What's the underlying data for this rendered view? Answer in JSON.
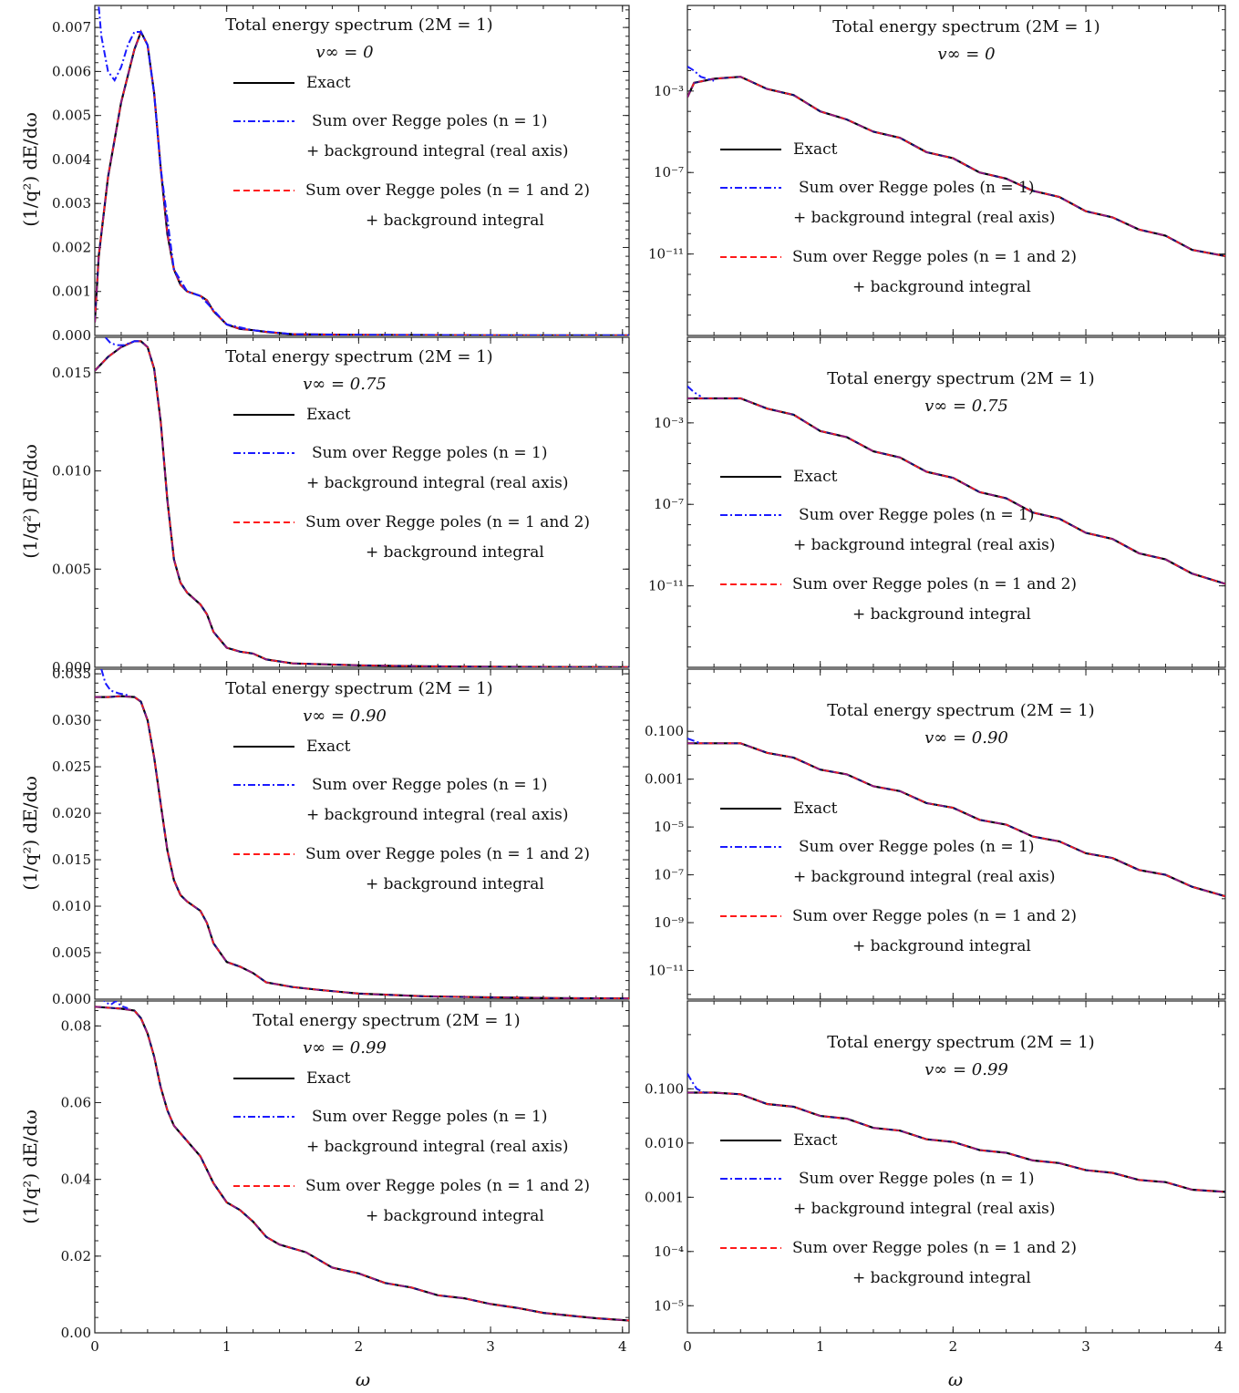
{
  "figure": {
    "x_axis_label": "ω",
    "y_axis_label": "(1/q²) dE/dω"
  },
  "legend": {
    "exact": "Exact",
    "regge_n1_line1": "Sum over Regge poles (n = 1)",
    "regge_n1_line2": "+ background integral (real axis)",
    "regge_n12_line1": "Sum over Regge poles (n = 1 and 2)",
    "regge_n12_line2": "+ background integral"
  },
  "colors": {
    "exact": "#000000",
    "regge_n1": "#1a1aff",
    "regge_n12": "#ff1a1a"
  },
  "chart_data": [
    {
      "type": "line",
      "title": "Total energy spectrum (2M = 1)",
      "subtitle": "v∞ = 0",
      "scale": "linear",
      "x_ticks": [
        0,
        1,
        2,
        3,
        4
      ],
      "xlim": [
        0,
        4.05
      ],
      "ylim": [
        0,
        0.0075
      ],
      "y_ticks": [
        0,
        0.001,
        0.002,
        0.003,
        0.004,
        0.005,
        0.006,
        0.007
      ],
      "y_tick_labels": [
        "0.000",
        "0.001",
        "0.002",
        "0.003",
        "0.004",
        "0.005",
        "0.006",
        "0.007"
      ],
      "x": [
        0,
        0.03,
        0.1,
        0.2,
        0.3,
        0.35,
        0.4,
        0.45,
        0.5,
        0.55,
        0.6,
        0.65,
        0.7,
        0.8,
        0.85,
        0.9,
        1.0,
        1.1,
        1.2,
        1.3,
        1.5,
        2.0,
        2.5,
        3.0,
        3.5,
        4.05
      ],
      "series": [
        {
          "name": "Exact",
          "values": [
            0.0003,
            0.0018,
            0.0036,
            0.0053,
            0.0065,
            0.0069,
            0.0066,
            0.0055,
            0.0038,
            0.0023,
            0.0015,
            0.00115,
            0.001,
            0.0009,
            0.0008,
            0.00055,
            0.00025,
            0.00015,
            0.00012,
            8e-05,
            3e-05,
            1.5e-05,
            1e-05,
            5e-06,
            3e-06,
            2e-06
          ]
        },
        {
          "name": "Sum over Regge poles (n = 1) + background integral (real axis)",
          "x": [
            0.02,
            0.05,
            0.1,
            0.15,
            0.2,
            0.25,
            0.3,
            0.35,
            0.4,
            0.45,
            0.5,
            0.6,
            0.7,
            0.8,
            1.0,
            1.2,
            1.5,
            2.0,
            3.0,
            4.05
          ],
          "values": [
            0.0078,
            0.0068,
            0.006,
            0.0058,
            0.0061,
            0.0066,
            0.0069,
            0.0069,
            0.0066,
            0.0055,
            0.0038,
            0.0015,
            0.001,
            0.0009,
            0.00025,
            0.00012,
            3e-05,
            1.5e-05,
            5e-06,
            2e-06
          ]
        },
        {
          "name": "Sum over Regge poles (n = 1 and 2) + background integral",
          "values": "same as Exact"
        }
      ]
    },
    {
      "type": "line",
      "title": "Total energy spectrum (2M = 1)",
      "subtitle": "v∞ = 0",
      "scale": "log",
      "x_ticks": [
        0,
        1,
        2,
        3,
        4
      ],
      "xlim": [
        0,
        4.05
      ],
      "ylim_log10": [
        -15,
        1.2
      ],
      "y_ticks_log10": [
        -3,
        -7,
        -11
      ],
      "y_tick_labels": [
        "10⁻³",
        "10⁻⁷",
        "10⁻¹¹"
      ],
      "x": [
        0,
        0.05,
        0.2,
        0.4,
        0.6,
        0.8,
        1.0,
        1.2,
        1.4,
        1.6,
        1.8,
        2.0,
        2.2,
        2.4,
        2.6,
        2.8,
        3.0,
        3.2,
        3.4,
        3.6,
        3.8,
        4.05
      ],
      "series": [
        {
          "name": "Exact",
          "values_log10": [
            -3.3,
            -2.6,
            -2.4,
            -2.3,
            -2.9,
            -3.2,
            -4.0,
            -4.4,
            -5.0,
            -5.3,
            -6.0,
            -6.3,
            -7.0,
            -7.3,
            -7.9,
            -8.2,
            -8.9,
            -9.2,
            -9.8,
            -10.1,
            -10.8,
            -11.1
          ]
        },
        {
          "name": "Sum over Regge poles (n = 1) + background integral (real axis)",
          "x": [
            0,
            0.05,
            0.1,
            0.2
          ],
          "values_log10": [
            -1.8,
            -2.0,
            -2.3,
            -2.5
          ]
        }
      ]
    },
    {
      "type": "line",
      "title": "Total energy spectrum (2M = 1)",
      "subtitle": "v∞ = 0.75",
      "scale": "linear",
      "x_ticks": [
        0,
        1,
        2,
        3,
        4
      ],
      "xlim": [
        0,
        4.05
      ],
      "ylim": [
        0,
        0.0168
      ],
      "y_ticks": [
        0,
        0.005,
        0.01,
        0.015
      ],
      "y_tick_labels": [
        "0.000",
        "0.005",
        "0.010",
        "0.015"
      ],
      "x": [
        0,
        0.1,
        0.2,
        0.3,
        0.35,
        0.4,
        0.45,
        0.5,
        0.55,
        0.6,
        0.65,
        0.7,
        0.8,
        0.85,
        0.9,
        1.0,
        1.1,
        1.2,
        1.3,
        1.5,
        2.0,
        2.5,
        3.0,
        3.5,
        4.05
      ],
      "series": [
        {
          "name": "Exact",
          "values": [
            0.0151,
            0.0158,
            0.0163,
            0.0166,
            0.0166,
            0.0163,
            0.0152,
            0.0125,
            0.0085,
            0.0055,
            0.0043,
            0.0038,
            0.0032,
            0.0027,
            0.0018,
            0.001,
            0.0008,
            0.0007,
            0.0004,
            0.0002,
            0.0001,
            5e-05,
            3e-05,
            2e-05,
            1e-05
          ]
        },
        {
          "name": "Sum over Regge poles (n = 1) + background integral (real axis)",
          "x": [
            0.05,
            0.08,
            0.12,
            0.17,
            0.22,
            0.3,
            0.35
          ],
          "values": [
            0.0175,
            0.0168,
            0.0165,
            0.0164,
            0.0164,
            0.0166,
            0.0166
          ]
        }
      ]
    },
    {
      "type": "line",
      "title": "Total energy spectrum (2M = 1)",
      "subtitle": "v∞ = 0.75",
      "scale": "log",
      "x_ticks": [
        0,
        1,
        2,
        3,
        4
      ],
      "xlim": [
        0,
        4.05
      ],
      "ylim_log10": [
        -15,
        1.2
      ],
      "y_ticks_log10": [
        -3,
        -7,
        -11
      ],
      "y_tick_labels": [
        "10⁻³",
        "10⁻⁷",
        "10⁻¹¹"
      ],
      "x": [
        0,
        0.2,
        0.4,
        0.6,
        0.8,
        1.0,
        1.2,
        1.4,
        1.6,
        1.8,
        2.0,
        2.2,
        2.4,
        2.6,
        2.8,
        3.0,
        3.2,
        3.4,
        3.6,
        3.8,
        4.05
      ],
      "series": [
        {
          "name": "Exact",
          "values_log10": [
            -1.8,
            -1.8,
            -1.8,
            -2.3,
            -2.6,
            -3.4,
            -3.7,
            -4.4,
            -4.7,
            -5.4,
            -5.7,
            -6.4,
            -6.7,
            -7.4,
            -7.7,
            -8.4,
            -8.7,
            -9.4,
            -9.7,
            -10.4,
            -10.9
          ]
        },
        {
          "name": "Sum over Regge poles (n = 1) + background integral (real axis)",
          "x": [
            0,
            0.05,
            0.1
          ],
          "values_log10": [
            -1.2,
            -1.5,
            -1.7
          ]
        }
      ]
    },
    {
      "type": "line",
      "title": "Total energy spectrum (2M = 1)",
      "subtitle": "v∞ = 0.90",
      "scale": "linear",
      "x_ticks": [
        0,
        1,
        2,
        3,
        4
      ],
      "xlim": [
        0,
        4.05
      ],
      "ylim": [
        0,
        0.0355
      ],
      "y_ticks": [
        0,
        0.005,
        0.01,
        0.015,
        0.02,
        0.025,
        0.03,
        0.035
      ],
      "y_tick_labels": [
        "0.000",
        "0.005",
        "0.010",
        "0.015",
        "0.020",
        "0.025",
        "0.030",
        "0.035"
      ],
      "x": [
        0,
        0.1,
        0.2,
        0.3,
        0.35,
        0.4,
        0.45,
        0.5,
        0.55,
        0.6,
        0.65,
        0.7,
        0.8,
        0.85,
        0.9,
        1.0,
        1.1,
        1.2,
        1.3,
        1.5,
        1.7,
        2.0,
        2.5,
        3.0,
        3.5,
        4.05
      ],
      "series": [
        {
          "name": "Exact",
          "values": [
            0.0325,
            0.0325,
            0.0326,
            0.0325,
            0.032,
            0.03,
            0.026,
            0.021,
            0.016,
            0.0128,
            0.0112,
            0.0105,
            0.0095,
            0.0082,
            0.006,
            0.004,
            0.0035,
            0.0028,
            0.0018,
            0.0013,
            0.001,
            0.0006,
            0.0003,
            0.0002,
            0.00012,
            8e-05
          ]
        },
        {
          "name": "Sum over Regge poles (n = 1) + background integral (real axis)",
          "x": [
            0.05,
            0.08,
            0.12,
            0.18,
            0.25
          ],
          "values": [
            0.0355,
            0.034,
            0.0332,
            0.0329,
            0.0327
          ]
        }
      ]
    },
    {
      "type": "line",
      "title": "Total energy spectrum (2M = 1)",
      "subtitle": "v∞ = 0.90",
      "scale": "log",
      "x_ticks": [
        0,
        1,
        2,
        3,
        4
      ],
      "xlim": [
        0,
        4.05
      ],
      "ylim_log10": [
        -12.2,
        1.6
      ],
      "y_ticks_log10": [
        -1,
        -3,
        -5,
        -7,
        -9,
        -11
      ],
      "y_tick_labels": [
        "0.100",
        "0.001",
        "10⁻⁵",
        "10⁻⁷",
        "10⁻⁹",
        "10⁻¹¹"
      ],
      "x": [
        0,
        0.2,
        0.4,
        0.6,
        0.8,
        1.0,
        1.2,
        1.4,
        1.6,
        1.8,
        2.0,
        2.2,
        2.4,
        2.6,
        2.8,
        3.0,
        3.2,
        3.4,
        3.6,
        3.8,
        4.05
      ],
      "series": [
        {
          "name": "Exact",
          "values_log10": [
            -1.5,
            -1.5,
            -1.5,
            -1.9,
            -2.1,
            -2.6,
            -2.8,
            -3.3,
            -3.5,
            -4.0,
            -4.2,
            -4.7,
            -4.9,
            -5.4,
            -5.6,
            -6.1,
            -6.3,
            -6.8,
            -7.0,
            -7.5,
            -7.9
          ]
        },
        {
          "name": "Sum over Regge poles (n = 1) + background integral (real axis)",
          "x": [
            0,
            0.05,
            0.1
          ],
          "values_log10": [
            -1.3,
            -1.4,
            -1.5
          ]
        }
      ]
    },
    {
      "type": "line",
      "title": "Total energy spectrum (2M = 1)",
      "subtitle": "v∞ = 0.99",
      "scale": "linear",
      "x_ticks": [
        0,
        1,
        2,
        3,
        4
      ],
      "xlim": [
        0,
        4.05
      ],
      "ylim": [
        0,
        0.0865
      ],
      "y_ticks": [
        0,
        0.02,
        0.04,
        0.06,
        0.08
      ],
      "y_tick_labels": [
        "0.00",
        "0.02",
        "0.04",
        "0.06",
        "0.08"
      ],
      "x": [
        0,
        0.2,
        0.3,
        0.35,
        0.4,
        0.45,
        0.5,
        0.55,
        0.6,
        0.7,
        0.8,
        0.9,
        1.0,
        1.1,
        1.2,
        1.3,
        1.4,
        1.6,
        1.8,
        2.0,
        2.2,
        2.4,
        2.6,
        2.8,
        3.0,
        3.2,
        3.4,
        3.6,
        3.8,
        4.05
      ],
      "series": [
        {
          "name": "Exact",
          "values": [
            0.085,
            0.0845,
            0.084,
            0.082,
            0.078,
            0.072,
            0.064,
            0.058,
            0.054,
            0.05,
            0.046,
            0.039,
            0.034,
            0.032,
            0.029,
            0.025,
            0.023,
            0.021,
            0.017,
            0.0155,
            0.013,
            0.0118,
            0.0098,
            0.009,
            0.0075,
            0.0065,
            0.0052,
            0.0045,
            0.0038,
            0.0032
          ]
        },
        {
          "name": "Sum over Regge poles (n = 1) + background integral (real axis)",
          "x": [
            0.04,
            0.08,
            0.12,
            0.16,
            0.2,
            0.25
          ],
          "values": [
            0.0878,
            0.0862,
            0.0855,
            0.0865,
            0.0852,
            0.0846
          ]
        }
      ]
    },
    {
      "type": "line",
      "title": "Total energy spectrum (2M = 1)",
      "subtitle": "v∞ = 0.99",
      "scale": "log",
      "x_ticks": [
        0,
        1,
        2,
        3,
        4
      ],
      "xlim": [
        0,
        4.05
      ],
      "ylim_log10": [
        -5.5,
        0.62
      ],
      "y_ticks_log10": [
        -1,
        -2,
        -3,
        -4,
        -5
      ],
      "y_tick_labels": [
        "0.100",
        "0.010",
        "0.001",
        "10⁻⁴",
        "10⁻⁵"
      ],
      "x": [
        0,
        0.2,
        0.4,
        0.6,
        0.8,
        1.0,
        1.2,
        1.4,
        1.6,
        1.8,
        2.0,
        2.2,
        2.4,
        2.6,
        2.8,
        3.0,
        3.2,
        3.4,
        3.6,
        3.8,
        4.05
      ],
      "series": [
        {
          "name": "Exact",
          "values_log10": [
            -1.07,
            -1.07,
            -1.1,
            -1.28,
            -1.33,
            -1.5,
            -1.55,
            -1.72,
            -1.77,
            -1.93,
            -1.98,
            -2.13,
            -2.18,
            -2.32,
            -2.37,
            -2.5,
            -2.55,
            -2.68,
            -2.72,
            -2.86,
            -2.9
          ]
        },
        {
          "name": "Sum over Regge poles (n = 1) + background integral (real axis)",
          "x": [
            0,
            0.03,
            0.07,
            0.12
          ],
          "values_log10": [
            -0.72,
            -0.85,
            -1.0,
            -1.06
          ]
        }
      ]
    }
  ]
}
